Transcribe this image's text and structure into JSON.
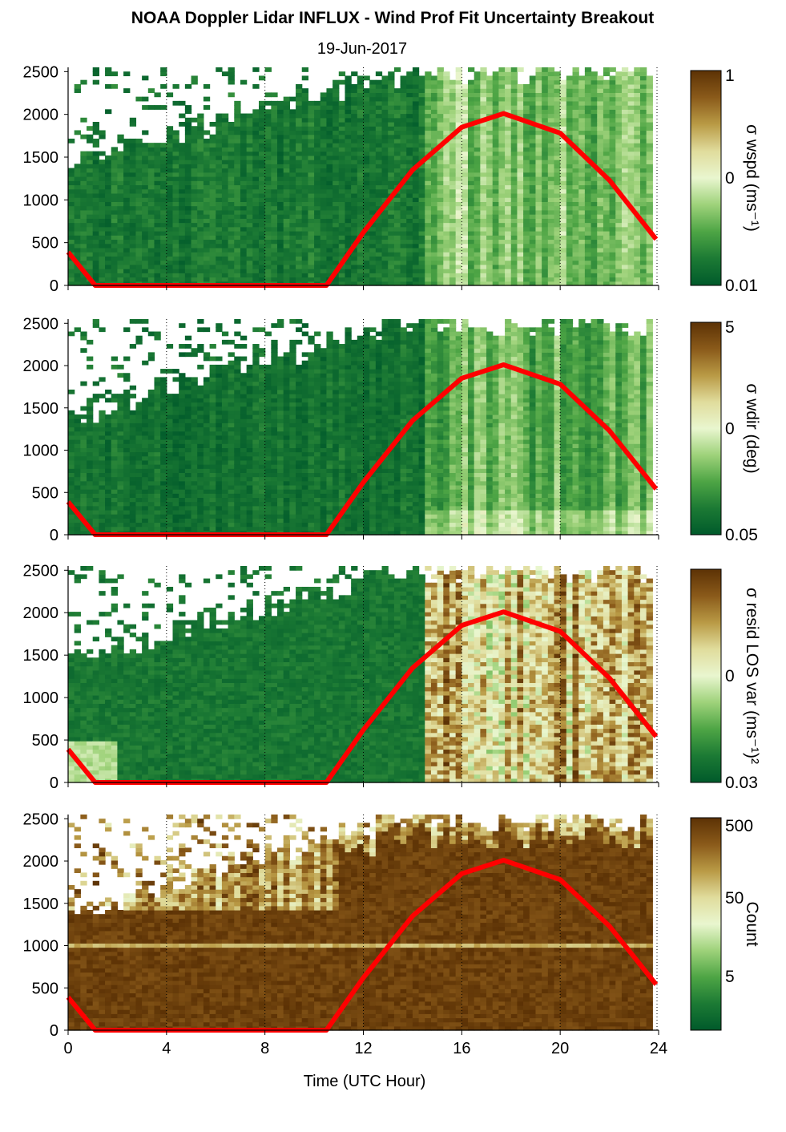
{
  "title": "NOAA Doppler Lidar INFLUX - Wind Prof Fit Uncertainty Breakout",
  "subtitle": "19-Jun-2017",
  "xlabel": "Time (UTC Hour)",
  "colors": {
    "sun_line": "#ff0000",
    "colormap": [
      "#005a2b",
      "#1c7a34",
      "#4ea545",
      "#9ed27a",
      "#e9f6cf",
      "#e0dc9c",
      "#b99a45",
      "#8a5a1a",
      "#5c3205"
    ]
  },
  "chart_data": [
    {
      "type": "heatmap",
      "panel": "wspd",
      "colorbar_label": "σ wspd (ms⁻¹)",
      "colorbar_ticks": [
        "1",
        "0",
        "0.01"
      ],
      "x_ticks": [
        0,
        4,
        8,
        12,
        16,
        20,
        24
      ],
      "y_ticks": [
        0,
        500,
        1000,
        1500,
        2000,
        2500
      ],
      "xlim": [
        0,
        24
      ],
      "ylim": [
        0,
        2550
      ],
      "cloud_top_profile": {
        "x": [
          0,
          2,
          3.5,
          4,
          6,
          8,
          10,
          12,
          14,
          16,
          18,
          20,
          22,
          24
        ],
        "y": [
          1400,
          1550,
          1700,
          1750,
          1900,
          2100,
          2200,
          2400,
          2500,
          2500,
          2500,
          2500,
          2500,
          2500
        ]
      },
      "sun_elevation_line": {
        "x": [
          0,
          1.1,
          10.5,
          12,
          14,
          16,
          17.7,
          20,
          22,
          23.9
        ],
        "y": [
          390,
          0,
          0,
          620,
          1350,
          1850,
          2010,
          1780,
          1230,
          540
        ]
      }
    },
    {
      "type": "heatmap",
      "panel": "wdir",
      "colorbar_label": "σ wdir (deg)",
      "colorbar_ticks": [
        "5",
        "0",
        "0.05"
      ],
      "x_ticks": [
        0,
        4,
        8,
        12,
        16,
        20,
        24
      ],
      "y_ticks": [
        0,
        500,
        1000,
        1500,
        2000,
        2500
      ],
      "xlim": [
        0,
        24
      ],
      "ylim": [
        0,
        2550
      ],
      "sun_elevation_line": {
        "x": [
          0,
          1.1,
          10.5,
          12,
          14,
          16,
          17.7,
          20,
          22,
          23.9
        ],
        "y": [
          390,
          0,
          0,
          620,
          1350,
          1850,
          2010,
          1780,
          1230,
          540
        ]
      }
    },
    {
      "type": "heatmap",
      "panel": "residual LOS var",
      "colorbar_label": "σ resid LOS var (ms⁻¹)²",
      "colorbar_ticks": [
        "",
        "0",
        "0.03"
      ],
      "x_ticks": [
        0,
        4,
        8,
        12,
        16,
        20,
        24
      ],
      "y_ticks": [
        0,
        500,
        1000,
        1500,
        2000,
        2500
      ],
      "xlim": [
        0,
        24
      ],
      "ylim": [
        0,
        2550
      ],
      "sun_elevation_line": {
        "x": [
          0,
          1.1,
          10.5,
          12,
          14,
          16,
          17.7,
          20,
          22,
          23.9
        ],
        "y": [
          390,
          0,
          0,
          620,
          1350,
          1850,
          2010,
          1780,
          1230,
          540
        ]
      }
    },
    {
      "type": "heatmap",
      "panel": "count",
      "colorbar_label": "Count",
      "colorbar_ticks": [
        "500",
        "50",
        "5"
      ],
      "x_ticks": [
        0,
        4,
        8,
        12,
        16,
        20,
        24
      ],
      "y_ticks": [
        0,
        500,
        1000,
        1500,
        2000,
        2500
      ],
      "xlim": [
        0,
        24
      ],
      "ylim": [
        0,
        2550
      ],
      "sun_elevation_line": {
        "x": [
          0,
          1.1,
          10.5,
          12,
          14,
          16,
          17.7,
          20,
          22,
          23.9
        ],
        "y": [
          390,
          0,
          0,
          620,
          1350,
          1850,
          2010,
          1780,
          1230,
          540
        ]
      }
    }
  ]
}
